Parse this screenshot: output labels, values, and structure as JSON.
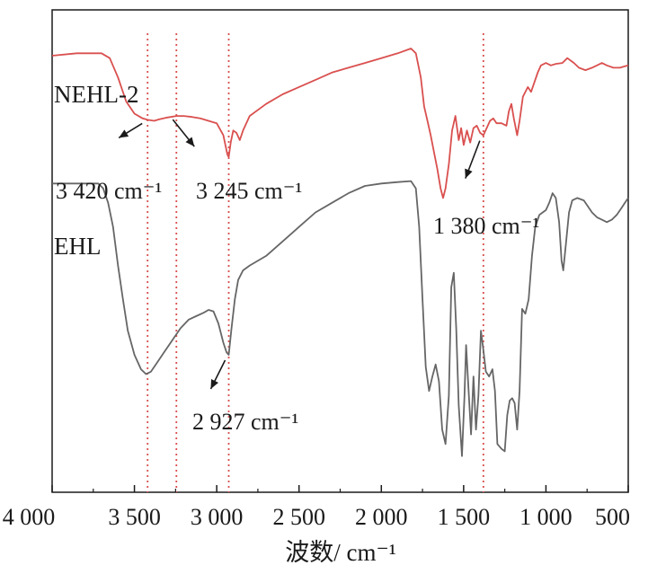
{
  "chart_data": {
    "type": "line",
    "title": "",
    "xlabel": "波数/ cm⁻¹",
    "ylabel": "",
    "x_reversed": true,
    "xlim": [
      4000,
      500
    ],
    "ylim": [
      0,
      100
    ],
    "grid": false,
    "x_ticks": [
      {
        "value": 4000,
        "label": "4 000"
      },
      {
        "value": 3500,
        "label": "3 500"
      },
      {
        "value": 3000,
        "label": "3 000"
      },
      {
        "value": 2500,
        "label": "2 500"
      },
      {
        "value": 2000,
        "label": "2 000"
      },
      {
        "value": 1500,
        "label": "1 500"
      },
      {
        "value": 1000,
        "label": "1 000"
      },
      {
        "value": 500,
        "label": "500"
      }
    ],
    "reference_lines": [
      3420,
      3245,
      2927,
      1380
    ],
    "series": [
      {
        "name": "NEHL-2",
        "color": "#d9504f",
        "points": [
          [
            4000,
            90.5
          ],
          [
            3850,
            91
          ],
          [
            3750,
            91
          ],
          [
            3700,
            91
          ],
          [
            3650,
            90
          ],
          [
            3600,
            86
          ],
          [
            3550,
            81
          ],
          [
            3500,
            78.5
          ],
          [
            3450,
            77.5
          ],
          [
            3420,
            77.2
          ],
          [
            3380,
            77
          ],
          [
            3350,
            77.3
          ],
          [
            3300,
            77.7
          ],
          [
            3245,
            78
          ],
          [
            3200,
            78
          ],
          [
            3150,
            77.8
          ],
          [
            3100,
            77.5
          ],
          [
            3050,
            77
          ],
          [
            3000,
            76.5
          ],
          [
            2960,
            74
          ],
          [
            2935,
            70
          ],
          [
            2927,
            69.5
          ],
          [
            2915,
            72.5
          ],
          [
            2900,
            75
          ],
          [
            2880,
            74.5
          ],
          [
            2860,
            73
          ],
          [
            2840,
            75
          ],
          [
            2800,
            78
          ],
          [
            2700,
            80.5
          ],
          [
            2600,
            82.5
          ],
          [
            2500,
            84
          ],
          [
            2400,
            85.5
          ],
          [
            2300,
            87
          ],
          [
            2200,
            88
          ],
          [
            2100,
            89
          ],
          [
            2000,
            90
          ],
          [
            1900,
            91
          ],
          [
            1820,
            92
          ],
          [
            1790,
            91
          ],
          [
            1760,
            86
          ],
          [
            1740,
            80
          ],
          [
            1720,
            77
          ],
          [
            1700,
            74
          ],
          [
            1680,
            70.5
          ],
          [
            1660,
            67
          ],
          [
            1640,
            63
          ],
          [
            1625,
            61
          ],
          [
            1610,
            63
          ],
          [
            1590,
            68
          ],
          [
            1570,
            75
          ],
          [
            1550,
            78
          ],
          [
            1530,
            73
          ],
          [
            1515,
            75.5
          ],
          [
            1500,
            72
          ],
          [
            1480,
            75
          ],
          [
            1460,
            72.5
          ],
          [
            1440,
            75.5
          ],
          [
            1420,
            76
          ],
          [
            1400,
            74.5
          ],
          [
            1380,
            74
          ],
          [
            1360,
            75.5
          ],
          [
            1340,
            77
          ],
          [
            1320,
            77.5
          ],
          [
            1300,
            76.5
          ],
          [
            1270,
            76.5
          ],
          [
            1240,
            76
          ],
          [
            1225,
            79
          ],
          [
            1210,
            80.5
          ],
          [
            1195,
            77.5
          ],
          [
            1175,
            74
          ],
          [
            1160,
            77
          ],
          [
            1140,
            82
          ],
          [
            1110,
            84
          ],
          [
            1090,
            83
          ],
          [
            1070,
            85
          ],
          [
            1050,
            87
          ],
          [
            1030,
            88.5
          ],
          [
            1000,
            89
          ],
          [
            970,
            88.5
          ],
          [
            940,
            88.8
          ],
          [
            900,
            89
          ],
          [
            870,
            90
          ],
          [
            850,
            89.5
          ],
          [
            830,
            89
          ],
          [
            800,
            88
          ],
          [
            760,
            87.5
          ],
          [
            720,
            88
          ],
          [
            690,
            88.5
          ],
          [
            660,
            89
          ],
          [
            630,
            88.5
          ],
          [
            590,
            88
          ],
          [
            550,
            88
          ],
          [
            520,
            88.3
          ],
          [
            500,
            88.5
          ]
        ]
      },
      {
        "name": "EHL",
        "color": "#666666",
        "points": [
          [
            4000,
            64
          ],
          [
            3800,
            64
          ],
          [
            3720,
            64
          ],
          [
            3690,
            63
          ],
          [
            3660,
            60
          ],
          [
            3630,
            55
          ],
          [
            3600,
            47
          ],
          [
            3570,
            40
          ],
          [
            3540,
            33.5
          ],
          [
            3500,
            28.5
          ],
          [
            3460,
            25.5
          ],
          [
            3430,
            24.5
          ],
          [
            3400,
            25
          ],
          [
            3370,
            26.5
          ],
          [
            3320,
            29
          ],
          [
            3270,
            31.5
          ],
          [
            3220,
            34
          ],
          [
            3170,
            35.8
          ],
          [
            3120,
            36.6
          ],
          [
            3080,
            37.2
          ],
          [
            3050,
            37.8
          ],
          [
            3020,
            37.5
          ],
          [
            2990,
            35
          ],
          [
            2960,
            31
          ],
          [
            2940,
            29
          ],
          [
            2927,
            28.5
          ],
          [
            2910,
            34
          ],
          [
            2890,
            40
          ],
          [
            2870,
            44
          ],
          [
            2840,
            46
          ],
          [
            2800,
            47
          ],
          [
            2700,
            49
          ],
          [
            2600,
            52
          ],
          [
            2500,
            55
          ],
          [
            2400,
            58
          ],
          [
            2300,
            60
          ],
          [
            2200,
            62
          ],
          [
            2100,
            63.5
          ],
          [
            2000,
            64
          ],
          [
            1900,
            64.3
          ],
          [
            1820,
            64.5
          ],
          [
            1790,
            63
          ],
          [
            1770,
            55
          ],
          [
            1750,
            40
          ],
          [
            1730,
            26
          ],
          [
            1710,
            21
          ],
          [
            1690,
            24
          ],
          [
            1670,
            26.5
          ],
          [
            1650,
            23
          ],
          [
            1630,
            13
          ],
          [
            1610,
            10
          ],
          [
            1590,
            20
          ],
          [
            1575,
            42.5
          ],
          [
            1560,
            45.5
          ],
          [
            1545,
            34
          ],
          [
            1530,
            18
          ],
          [
            1510,
            7.5
          ],
          [
            1495,
            20
          ],
          [
            1485,
            30.5
          ],
          [
            1470,
            21
          ],
          [
            1455,
            12
          ],
          [
            1440,
            24
          ],
          [
            1425,
            13
          ],
          [
            1410,
            20
          ],
          [
            1395,
            33.5
          ],
          [
            1380,
            29.5
          ],
          [
            1365,
            25
          ],
          [
            1345,
            24
          ],
          [
            1325,
            25.5
          ],
          [
            1310,
            21
          ],
          [
            1295,
            10
          ],
          [
            1270,
            9
          ],
          [
            1250,
            8.5
          ],
          [
            1235,
            16
          ],
          [
            1220,
            19
          ],
          [
            1205,
            19.5
          ],
          [
            1190,
            18.5
          ],
          [
            1175,
            13
          ],
          [
            1160,
            21
          ],
          [
            1145,
            38
          ],
          [
            1125,
            37
          ],
          [
            1105,
            40
          ],
          [
            1085,
            49
          ],
          [
            1065,
            55
          ],
          [
            1040,
            57.5
          ],
          [
            1020,
            58
          ],
          [
            1000,
            58.5
          ],
          [
            980,
            60
          ],
          [
            960,
            62
          ],
          [
            940,
            61
          ],
          [
            920,
            56
          ],
          [
            905,
            48
          ],
          [
            895,
            46
          ],
          [
            880,
            51
          ],
          [
            860,
            58
          ],
          [
            840,
            60.5
          ],
          [
            810,
            61
          ],
          [
            770,
            60.5
          ],
          [
            720,
            58
          ],
          [
            690,
            57
          ],
          [
            660,
            56.5
          ],
          [
            630,
            56
          ],
          [
            600,
            56.5
          ],
          [
            570,
            57.5
          ],
          [
            540,
            59
          ],
          [
            520,
            60
          ],
          [
            500,
            61
          ]
        ]
      }
    ],
    "annotations": [
      {
        "text": "3 420 cm⁻¹",
        "x": 3420
      },
      {
        "text": "3 245 cm⁻¹",
        "x": 3245
      },
      {
        "text": "2 927 cm⁻¹",
        "x": 2927
      },
      {
        "text": "1 380 cm⁻¹",
        "x": 1380
      }
    ]
  }
}
